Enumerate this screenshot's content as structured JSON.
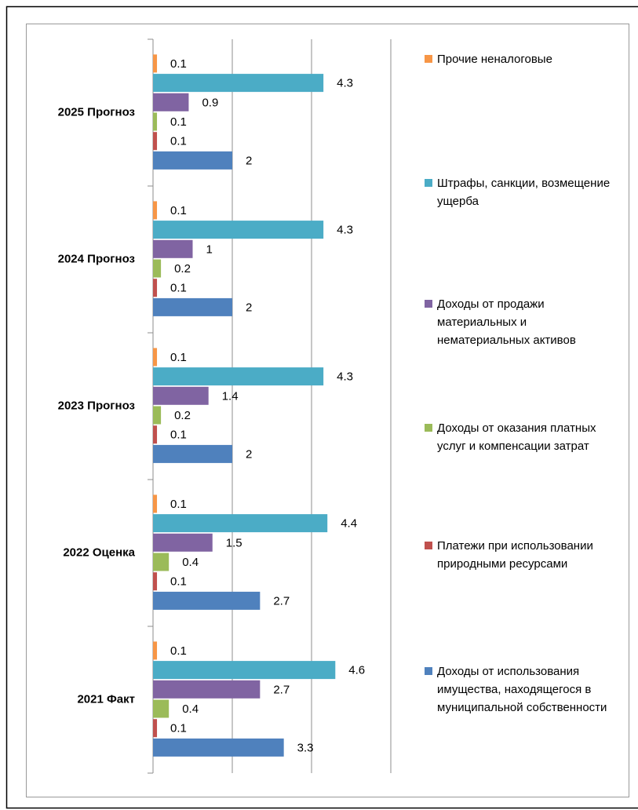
{
  "chart_data": {
    "type": "bar",
    "orientation": "horizontal",
    "categories": [
      "2021 Факт",
      "2022 Оценка",
      "2023 Прогноз",
      "2024 Прогноз",
      "2025 Прогноз"
    ],
    "series": [
      {
        "name": "Прочие неналоговые",
        "color": "#f79646",
        "values": [
          0.1,
          0.1,
          0.1,
          0.1,
          0.1
        ]
      },
      {
        "name": "Штрафы, санкции, возмещение ущерба",
        "color": "#4bacc6",
        "values": [
          4.6,
          4.4,
          4.3,
          4.3,
          4.3
        ]
      },
      {
        "name": "Доходы от продажи материальных и нематериальных активов",
        "color": "#8064a2",
        "values": [
          2.7,
          1.5,
          1.4,
          1,
          0.9
        ]
      },
      {
        "name": "Доходы от оказания платных услуг и компенсации затрат",
        "color": "#9bbb59",
        "values": [
          0.4,
          0.4,
          0.2,
          0.2,
          0.1
        ]
      },
      {
        "name": "Платежи при использовании природными ресурсами",
        "color": "#c0504d",
        "values": [
          0.1,
          0.1,
          0.1,
          0.1,
          0.1
        ]
      },
      {
        "name": "Доходы  от использования имущества, находящегося в муниципальной собственности",
        "color": "#4f81bd",
        "values": [
          3.3,
          2.7,
          2,
          2,
          2
        ]
      }
    ],
    "xlim": [
      0,
      6
    ],
    "xticks": [
      0,
      2,
      4,
      6
    ],
    "grid": true,
    "legend": "right"
  }
}
